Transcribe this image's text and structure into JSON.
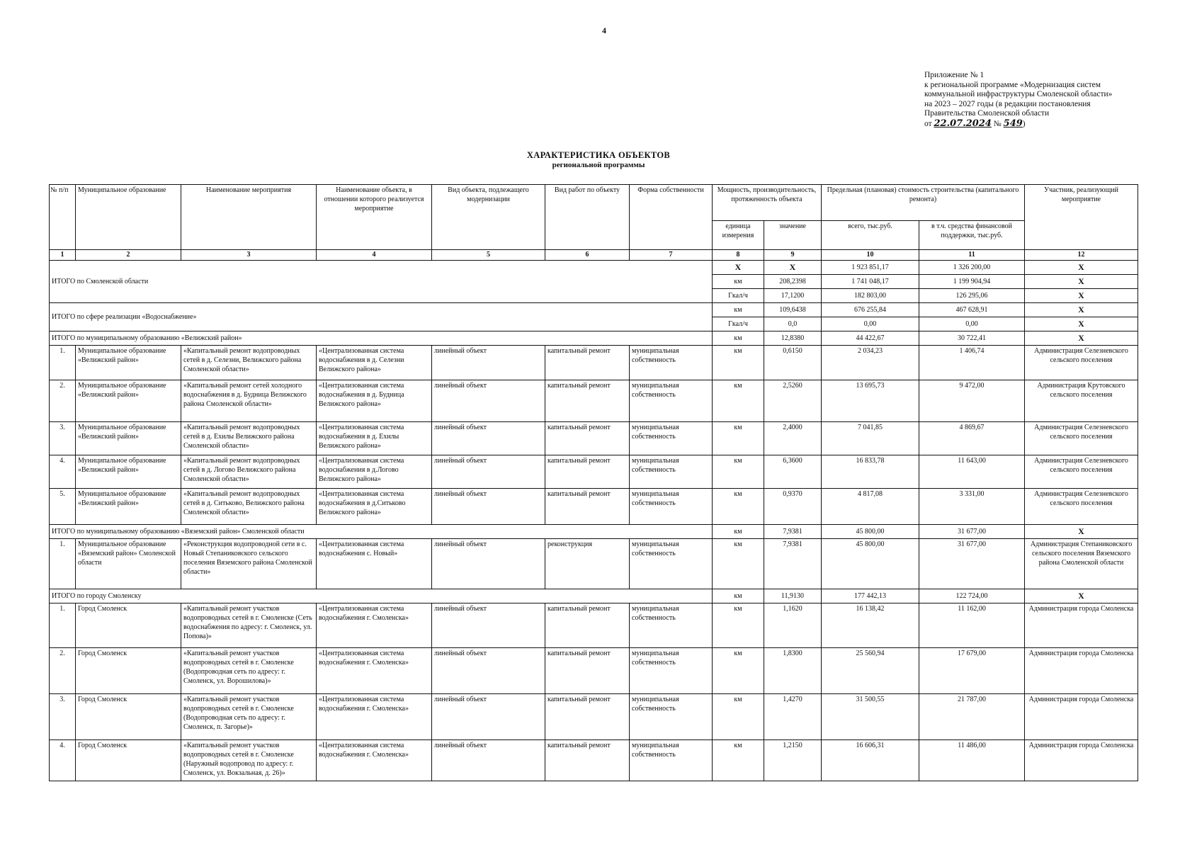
{
  "page_number": "4",
  "appendix": {
    "lines": [
      "Приложение № 1",
      "к региональной программе «Модернизация систем",
      "коммунальной инфраструктуры Смоленской области»",
      "на 2023 – 2027 годы (в редакции постановления",
      "Правительства Смоленской области"
    ],
    "date_prefix": "от",
    "date": "22.07.2024",
    "number_prefix": "№",
    "number": "549",
    "close": ")"
  },
  "title": {
    "line1": "ХАРАКТЕРИСТИКА ОБЪЕКТОВ",
    "line2": "региональной программы"
  },
  "table": {
    "headers": {
      "n": "№ п/п",
      "municipality": "Муниципальное образование",
      "event": "Наименование мероприятия",
      "object": "Наименование объекта, в отношении которого реализуется мероприятие",
      "object_type": "Вид объекта, подлежащего модернизации",
      "work_type": "Вид работ по объекту",
      "ownership": "Форма собственности",
      "capacity": "Мощность, производительность, протяженность объекта",
      "unit": "единица измерения",
      "value": "значение",
      "cost": "Предельная (плановая) стоимость строительства (капитального ремонта)",
      "cost_total": "всего, тыс.руб.",
      "cost_support": "в т.ч. средства финансовой поддержки, тыс.руб.",
      "participant": "Участник, реализующий мероприятие"
    },
    "column_numbers": [
      "1",
      "2",
      "3",
      "4",
      "5",
      "6",
      "7",
      "8",
      "9",
      "10",
      "11",
      "12"
    ],
    "rows": [
      {
        "kind": "total",
        "label": "ИТОГО по Смоленской области",
        "span": 3,
        "lines": [
          {
            "unit": "X",
            "value": "X",
            "total": "1 923 851,17",
            "support": "1 326 200,00",
            "participant": "X"
          },
          {
            "unit": "км",
            "value": "208,2398",
            "total": "1 741 048,17",
            "support": "1 199 904,94",
            "participant": "X"
          },
          {
            "unit": "Гкал/ч",
            "value": "17,1200",
            "total": "182 803,00",
            "support": "126 295,06",
            "participant": "X"
          }
        ]
      },
      {
        "kind": "total",
        "label": "ИТОГО по сфере реализации «Водоснабжение»",
        "span": 2,
        "lines": [
          {
            "unit": "км",
            "value": "109,6438",
            "total": "676 255,84",
            "support": "467 628,91",
            "participant": "X"
          },
          {
            "unit": "Гкал/ч",
            "value": "0,0",
            "total": "0,00",
            "support": "0,00",
            "participant": "X"
          }
        ]
      },
      {
        "kind": "total",
        "label": "ИТОГО по муниципальному образованию  «Велижский район»",
        "span": 1,
        "lines": [
          {
            "unit": "км",
            "value": "12,8380",
            "total": "44 422,67",
            "support": "30 722,41",
            "participant": "X"
          }
        ]
      },
      {
        "kind": "item",
        "n": "1.",
        "municipality": "Муниципальное образование «Велижский район»",
        "event": "«Капитальный ремонт водопроводных сетей в д. Селезни, Велижского района Смоленской области»",
        "object": "«Централизованная система водоснабжения в д. Селезни Велижского района»",
        "object_type": "линейный объект",
        "work_type": "капитальный ремонт",
        "ownership": "муниципальная собственность",
        "unit": "км",
        "value": "0,6150",
        "total": "2 034,23",
        "support": "1 406,74",
        "participant": "Администрация Селезневского сельского поселения"
      },
      {
        "kind": "item",
        "n": "2.",
        "municipality": "Муниципальное образование «Велижский район»",
        "event": "«Капитальный ремонт сетей холодного водоснабжения в д. Будница Велижского района Смоленской области»",
        "object": "«Централизованная система водоснабжения в д. Будница Велижского района»",
        "object_type": "линейный объект",
        "work_type": "капитальный ремонт",
        "ownership": "муниципальная собственность",
        "unit": "км",
        "value": "2,5260",
        "total": "13 695,73",
        "support": "9 472,00",
        "participant": "Администрация Крутовского сельского поселения"
      },
      {
        "kind": "item",
        "n": "3.",
        "municipality": "Муниципальное образование «Велижский район»",
        "event": "«Капитальный ремонт водопроводных сетей в  д. Ехилы Велижского района Смоленской области»",
        "object": "«Централизованная система водоснабжения в д. Ехилы Велижского района»",
        "object_type": "линейный объект",
        "work_type": "капитальный ремонт",
        "ownership": "муниципальная собственность",
        "unit": "км",
        "value": "2,4000",
        "total": "7 041,85",
        "support": "4 869,67",
        "participant": "Администрация Селезневского сельского поселения"
      },
      {
        "kind": "item",
        "n": "4.",
        "municipality": "Муниципальное образование «Велижский район»",
        "event": "«Капитальный ремонт водопроводных сетей в  д. Логово Велижского района Смоленской области»",
        "object": "«Централизованная система водоснабжения в д.Логово Велижского района»",
        "object_type": "линейный объект",
        "work_type": "капитальный ремонт",
        "ownership": "муниципальная собственность",
        "unit": "км",
        "value": "6,3600",
        "total": "16 833,78",
        "support": "11 643,00",
        "participant": "Администрация Селезневского сельского поселения"
      },
      {
        "kind": "item",
        "n": "5.",
        "municipality": "Муниципальное образование «Велижский район»",
        "event": "«Капитальный ремонт водопроводных сетей в д. Ситьково, Велижского района Смоленской области»",
        "object": "«Централизованная система водоснабжения в д.Ситьково Велижского района»",
        "object_type": "линейный объект",
        "work_type": "капитальный ремонт",
        "ownership": "муниципальная собственность",
        "unit": "км",
        "value": "0,9370",
        "total": "4 817,08",
        "support": "3 331,00",
        "participant": "Администрация Селезневского сельского поселения"
      },
      {
        "kind": "total",
        "label": "ИТОГО по муниципальному образованию «Вяземский район» Смоленской области",
        "span": 1,
        "lines": [
          {
            "unit": "км",
            "value": "7,9381",
            "total": "45 800,00",
            "support": "31 677,00",
            "participant": "X"
          }
        ]
      },
      {
        "kind": "item",
        "n": "1.",
        "municipality": "Муниципальное образование «Вяземский район» Смоленской области",
        "event": "«Реконструкция водопроводной сети в с. Новый Степаниковского сельского поселения Вяземского района Смоленской области»",
        "object": "«Централизованная система водоснабжения с. Новый»",
        "object_type": "линейный объект",
        "work_type": "реконструкция",
        "ownership": "муниципальная собственность",
        "unit": "км",
        "value": "7,9381",
        "total": "45 800,00",
        "support": "31 677,00",
        "participant": "Администрация Степаниковского сельского поселения  Вяземского района Смоленской области"
      },
      {
        "kind": "total",
        "label": "ИТОГО по городу Смоленску",
        "span": 1,
        "lines": [
          {
            "unit": "км",
            "value": "11,9130",
            "total": "177 442,13",
            "support": "122 724,00",
            "participant": "X"
          }
        ]
      },
      {
        "kind": "item",
        "n": "1.",
        "municipality": "Город Смоленск",
        "event": "«Капитальный ремонт участков водопроводных сетей в г. Смоленске (Сеть водоснабжения по адресу: г. Смоленск, ул. Попова)»",
        "object": "«Централизованная система водоснабжения г. Смоленска»",
        "object_type": "линейный объект",
        "work_type": "капитальный ремонт",
        "ownership": "муниципальная собственность",
        "unit": "км",
        "value": "1,1620",
        "total": "16 138,42",
        "support": "11 162,00",
        "participant": "Администрация города Смоленска"
      },
      {
        "kind": "item",
        "n": "2.",
        "municipality": "Город Смоленск",
        "event": "«Капитальный ремонт участков водопроводных сетей в г. Смоленске (Водопроводная сеть по адресу: г. Смоленск, ул. Ворошилова)»",
        "object": "«Централизованная система водоснабжения г. Смоленска»",
        "object_type": "линейный объект",
        "work_type": "капитальный ремонт",
        "ownership": "муниципальная собственность",
        "unit": "км",
        "value": "1,8300",
        "total": "25 560,94",
        "support": "17 679,00",
        "participant": "Администрация города Смоленска"
      },
      {
        "kind": "item",
        "n": "3.",
        "municipality": "Город Смоленск",
        "event": "«Капитальный ремонт участков водопроводных сетей в г. Смоленске (Водопроводная сеть по адресу: г. Смоленск, п. Загорье)»",
        "object": "«Централизованная система водоснабжения г. Смоленска»",
        "object_type": "линейный объект",
        "work_type": "капитальный ремонт",
        "ownership": "муниципальная собственность",
        "unit": "км",
        "value": "1,4270",
        "total": "31 500,55",
        "support": "21 787,00",
        "participant": "Администрация города Смоленска"
      },
      {
        "kind": "item",
        "n": "4.",
        "municipality": "Город Смоленск",
        "event": "«Капитальный ремонт участков водопроводных сетей в г. Смоленске (Наружный водопровод по адресу: г. Смоленск, ул. Вокзальная, д. 26)»",
        "object": "«Централизованная система водоснабжения г. Смоленска»",
        "object_type": "линейный объект",
        "work_type": "капитальный ремонт",
        "ownership": "муниципальная собственность",
        "unit": "км",
        "value": "1,2150",
        "total": "16 606,31",
        "support": "11 486,00",
        "participant": "Администрация города Смоленска"
      }
    ]
  }
}
